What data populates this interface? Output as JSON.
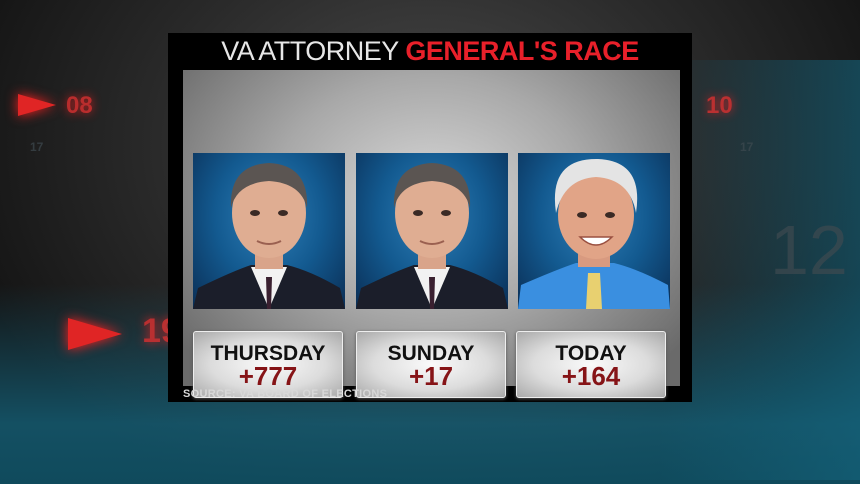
{
  "background_numbers": [
    "08",
    "10",
    "12",
    "19",
    "17",
    "17"
  ],
  "title": {
    "part1": "VA ATTORNEY",
    "part2": "GENERAL'S RACE"
  },
  "colors": {
    "title_red": "#e8202a",
    "margin_red": "#861417",
    "photo_blue": "#135a90"
  },
  "cards": [
    {
      "day": "THURSDAY",
      "margin": "+777",
      "photo": "candidate-1"
    },
    {
      "day": "SUNDAY",
      "margin": "+17",
      "photo": "candidate-1"
    },
    {
      "day": "TODAY",
      "margin": "+164",
      "photo": "candidate-2"
    }
  ],
  "source": "SOURCE: VA BOARD OF ELECTIONS"
}
